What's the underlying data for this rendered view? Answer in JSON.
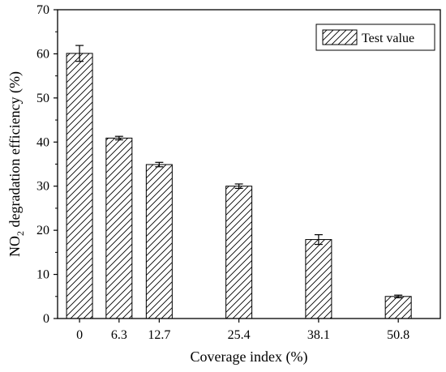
{
  "chart_data": {
    "type": "bar",
    "x": [
      0,
      6.3,
      12.7,
      25.4,
      38.1,
      50.8
    ],
    "categories": [
      "0",
      "6.3",
      "12.7",
      "25.4",
      "38.1",
      "50.8"
    ],
    "series": [
      {
        "name": "Test value",
        "values": [
          60.1,
          40.9,
          34.9,
          30.0,
          17.9,
          5.0
        ],
        "errors": [
          1.8,
          0.4,
          0.5,
          0.5,
          1.1,
          0.3
        ]
      }
    ],
    "xlabel": "Coverage index (%)",
    "ylabel_main": "NO",
    "ylabel_sub": "2",
    "ylabel_rest": " degradation efficiency (%)",
    "ylim": [
      0,
      70
    ],
    "yticks": [
      0,
      10,
      20,
      30,
      40,
      50,
      60,
      70
    ],
    "bar_pattern": "diagonal-hatch",
    "bar_fill": "#ffffff",
    "bar_stroke": "#000000",
    "legend_position": "top-right",
    "grid": false
  }
}
